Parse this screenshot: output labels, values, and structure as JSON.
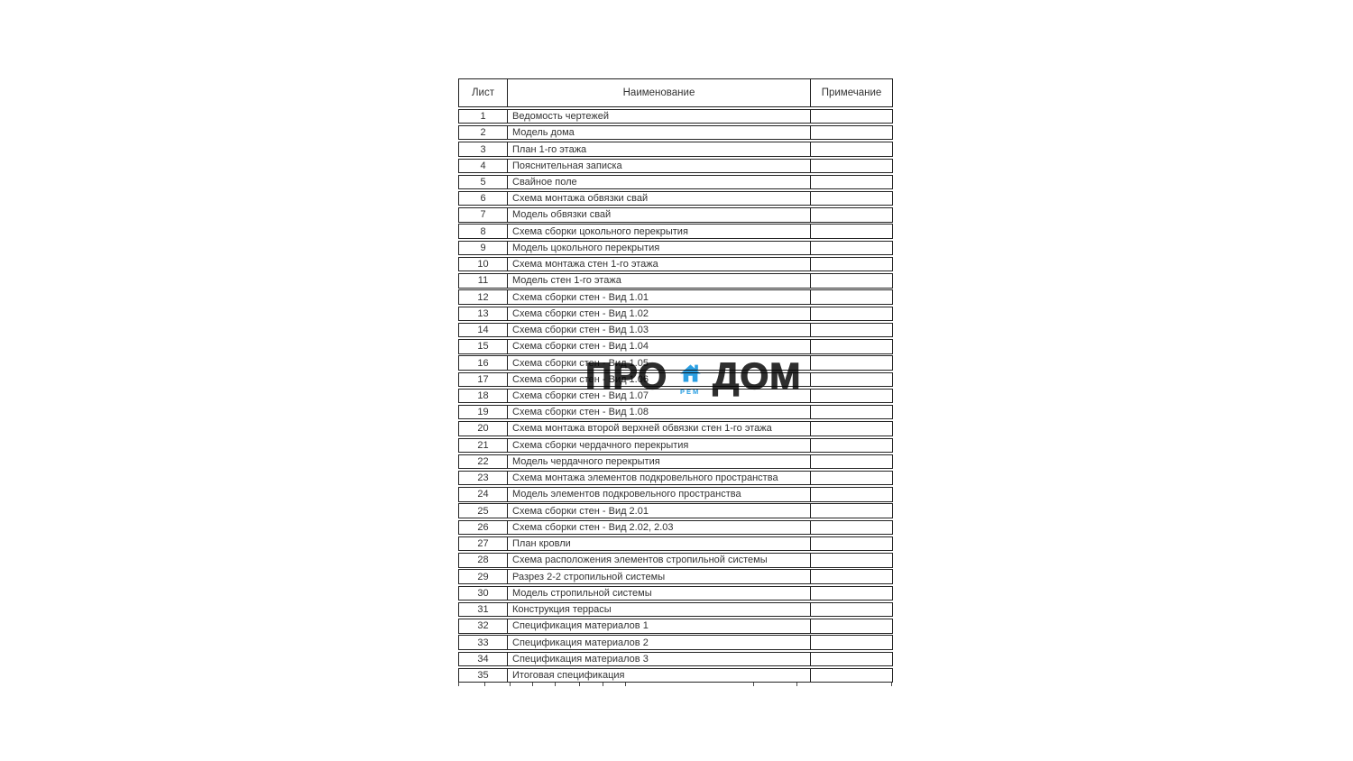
{
  "watermark": {
    "left_text": "ПРО",
    "right_text": "ДОМ",
    "sub_text": "РЕМ",
    "text_color": "#2e2e2e",
    "accent_color": "#2b9fe2"
  },
  "table": {
    "headers": [
      "Лист",
      "Наименование",
      "Примечание"
    ],
    "rows": [
      {
        "num": "1",
        "name": "Ведомость чертежей",
        "note": ""
      },
      {
        "num": "2",
        "name": "Модель дома",
        "note": ""
      },
      {
        "num": "3",
        "name": "План 1-го этажа",
        "note": ""
      },
      {
        "num": "4",
        "name": "Пояснительная записка",
        "note": ""
      },
      {
        "num": "5",
        "name": "Свайное поле",
        "note": ""
      },
      {
        "num": "6",
        "name": "Схема монтажа обвязки свай",
        "note": ""
      },
      {
        "num": "7",
        "name": "Модель обвязки свай",
        "note": ""
      },
      {
        "num": "8",
        "name": "Схема сборки цокольного перекрытия",
        "note": ""
      },
      {
        "num": "9",
        "name": "Модель цокольного перекрытия",
        "note": ""
      },
      {
        "num": "10",
        "name": "Схема монтажа стен 1-го этажа",
        "note": ""
      },
      {
        "num": "11",
        "name": "Модель стен 1-го этажа",
        "note": ""
      },
      {
        "num": "12",
        "name": "Схема сборки стен - Вид 1.01",
        "note": ""
      },
      {
        "num": "13",
        "name": "Схема сборки стен - Вид 1.02",
        "note": ""
      },
      {
        "num": "14",
        "name": "Схема сборки стен - Вид 1.03",
        "note": ""
      },
      {
        "num": "15",
        "name": "Схема сборки стен - Вид 1.04",
        "note": ""
      },
      {
        "num": "16",
        "name": "Схема сборки стен - Вид 1.05",
        "note": ""
      },
      {
        "num": "17",
        "name": "Схема сборки стен - Вид 1.06",
        "note": ""
      },
      {
        "num": "18",
        "name": "Схема сборки стен - Вид 1.07",
        "note": ""
      },
      {
        "num": "19",
        "name": "Схема сборки стен - Вид 1.08",
        "note": ""
      },
      {
        "num": "20",
        "name": "Схема монтажа второй верхней обвязки стен 1-го этажа",
        "note": ""
      },
      {
        "num": "21",
        "name": "Схема сборки чердачного перекрытия",
        "note": ""
      },
      {
        "num": "22",
        "name": "Модель чердачного перекрытия",
        "note": ""
      },
      {
        "num": "23",
        "name": "Схема монтажа элементов подкровельного пространства",
        "note": ""
      },
      {
        "num": "24",
        "name": "Модель элементов подкровельного пространства",
        "note": ""
      },
      {
        "num": "25",
        "name": "Схема сборки стен - Вид 2.01",
        "note": ""
      },
      {
        "num": "26",
        "name": "Схема сборки стен - Вид 2.02, 2.03",
        "note": ""
      },
      {
        "num": "27",
        "name": "План кровли",
        "note": ""
      },
      {
        "num": "28",
        "name": "Схема расположения элементов стропильной системы",
        "note": ""
      },
      {
        "num": "29",
        "name": "Разрез 2-2 стропильной системы",
        "note": ""
      },
      {
        "num": "30",
        "name": "Модель стропильной системы",
        "note": ""
      },
      {
        "num": "31",
        "name": "Конструкция террасы",
        "note": ""
      },
      {
        "num": "32",
        "name": "Спецификация материалов 1",
        "note": ""
      },
      {
        "num": "33",
        "name": "Спецификация материалов 2",
        "note": ""
      },
      {
        "num": "34",
        "name": "Спецификация материалов 3",
        "note": ""
      },
      {
        "num": "35",
        "name": "Итоговая спецификация",
        "note": ""
      }
    ]
  }
}
